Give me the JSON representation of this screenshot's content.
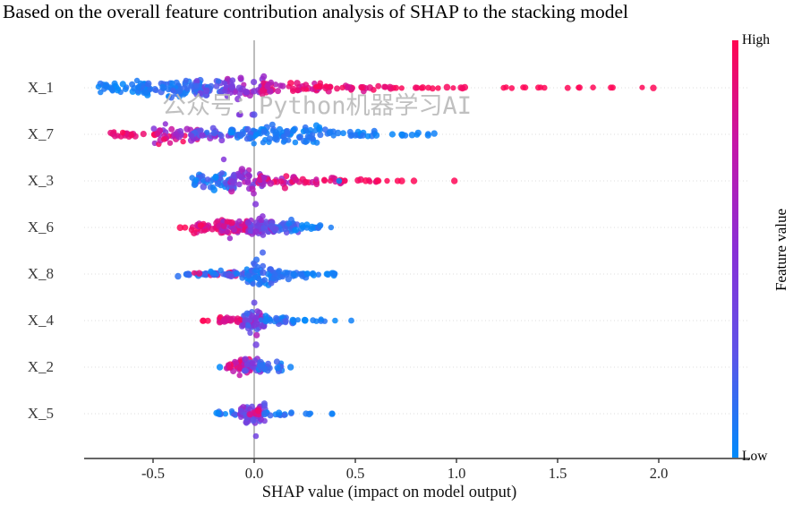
{
  "title": "Based on the overall feature contribution analysis of SHAP to the stacking model",
  "watermark": "公众号：Python机器学习AI",
  "chart_data": {
    "type": "beeswarm",
    "title": "Based on the overall feature contribution analysis of SHAP to the stacking model",
    "xlabel": "SHAP value (impact on model output)",
    "ylabel": "",
    "x_ticks": [
      {
        "value": -0.5,
        "label": "-0.5"
      },
      {
        "value": 0.0,
        "label": "0.0"
      },
      {
        "value": 0.5,
        "label": "0.5"
      },
      {
        "value": 1.0,
        "label": "1.0"
      },
      {
        "value": 1.5,
        "label": "1.5"
      },
      {
        "value": 2.0,
        "label": "2.0"
      }
    ],
    "x_range": [
      -0.84,
      2.45
    ],
    "grid": "dotted horizontal line per feature row",
    "zero_reference_line": 0.0,
    "colorbar": {
      "high_label": "High",
      "low_label": "Low",
      "axis_label": "Feature value",
      "high_color": "#ff0751",
      "low_color": "#008bfb",
      "gradient_stops_top_to_bottom": [
        "#ff0751",
        "#c516a8",
        "#8a2fd6",
        "#5e53e8",
        "#008bfb"
      ]
    },
    "colormap_stops": [
      {
        "t": 0.0,
        "rgb": [
          0,
          139,
          251
        ]
      },
      {
        "t": 0.35,
        "rgb": [
          94,
          83,
          232
        ]
      },
      {
        "t": 0.6,
        "rgb": [
          138,
          47,
          214
        ]
      },
      {
        "t": 0.8,
        "rgb": [
          197,
          22,
          168
        ]
      },
      {
        "t": 1.0,
        "rgb": [
          255,
          7,
          87
        ]
      }
    ],
    "features": [
      {
        "name": "X_1",
        "shap_range": [
          -0.78,
          2.03
        ],
        "summary": "low values (blue) push negative to -0.78; high values (pink/red) push positive with sparse red outliers from 1.2 to 2.0",
        "clusters": [
          {
            "from": -0.78,
            "to": -0.52,
            "n": 40,
            "spread": 9,
            "t": [
              0.0,
              0.15
            ]
          },
          {
            "from": -0.58,
            "to": -0.25,
            "n": 75,
            "spread": 13,
            "t": [
              0.0,
              0.25
            ]
          },
          {
            "from": -0.3,
            "to": -0.12,
            "n": 35,
            "spread": 12,
            "t": [
              0.1,
              0.5
            ]
          },
          {
            "from": -0.14,
            "to": 0.07,
            "n": 48,
            "spread": 19,
            "t": [
              0.45,
              0.8
            ]
          },
          {
            "from": 0.04,
            "to": 0.34,
            "n": 45,
            "spread": 9,
            "t": [
              0.72,
              1.0
            ]
          },
          {
            "from": 0.3,
            "to": 0.7,
            "n": 32,
            "spread": 5,
            "t": [
              0.85,
              1.0
            ]
          },
          {
            "from": 0.7,
            "to": 1.05,
            "n": 14,
            "spread": 1.5,
            "t": [
              0.95,
              1.0
            ]
          },
          {
            "from": 1.22,
            "to": 2.03,
            "n": 16,
            "spread": 1,
            "t": [
              1.0,
              1.0
            ]
          },
          {
            "from": -0.25,
            "to": 0.1,
            "n": 4,
            "spread": 0,
            "dy": 30,
            "t": [
              0.3,
              0.7
            ]
          }
        ]
      },
      {
        "name": "X_7",
        "shap_range": [
          -0.71,
          0.9
        ],
        "summary": "high values (red) push negative; low values (blue) cluster at 0 to +0.4 with tail to +0.9",
        "clusters": [
          {
            "from": -0.71,
            "to": -0.46,
            "n": 22,
            "spread": 4,
            "t": [
              0.88,
              1.0
            ]
          },
          {
            "from": -0.5,
            "to": -0.28,
            "n": 40,
            "spread": 13,
            "t": [
              0.55,
              1.0
            ]
          },
          {
            "from": -0.32,
            "to": -0.1,
            "n": 30,
            "spread": 8,
            "t": [
              0.15,
              0.65
            ]
          },
          {
            "from": -0.12,
            "to": 0.06,
            "n": 35,
            "spread": 12,
            "t": [
              0.0,
              0.3
            ]
          },
          {
            "from": 0.04,
            "to": 0.36,
            "n": 65,
            "spread": 17,
            "t": [
              0.0,
              0.2
            ]
          },
          {
            "from": 0.34,
            "to": 0.6,
            "n": 22,
            "spread": 6,
            "t": [
              0.0,
              0.15
            ]
          },
          {
            "from": 0.58,
            "to": 0.9,
            "n": 12,
            "spread": 2.5,
            "t": [
              0.0,
              0.1
            ]
          },
          {
            "from": -0.18,
            "to": -0.15,
            "n": 1,
            "spread": 0,
            "dy": 28,
            "t": [
              0.5,
              0.6
            ]
          }
        ]
      },
      {
        "name": "X_3",
        "shap_range": [
          -0.31,
          0.99
        ],
        "summary": "low values (blue) slightly negative; high values (red) positive with isolated red outlier near 1.0",
        "clusters": [
          {
            "from": -0.31,
            "to": -0.1,
            "n": 45,
            "spread": 14,
            "t": [
              0.0,
              0.35
            ]
          },
          {
            "from": -0.12,
            "to": 0.04,
            "n": 40,
            "spread": 16,
            "t": [
              0.4,
              0.8
            ]
          },
          {
            "from": 0.02,
            "to": 0.2,
            "n": 30,
            "spread": 9,
            "t": [
              0.6,
              1.0
            ]
          },
          {
            "from": 0.18,
            "to": 0.44,
            "n": 24,
            "spread": 6,
            "t": [
              0.8,
              1.0
            ]
          },
          {
            "from": 0.42,
            "to": 0.62,
            "n": 12,
            "spread": 2,
            "t": [
              0.9,
              1.0
            ]
          },
          {
            "from": 0.42,
            "to": 0.42,
            "n": 1,
            "spread": 0,
            "t": [
              0.0,
              0.0
            ]
          },
          {
            "from": 0.6,
            "to": 0.73,
            "n": 4,
            "spread": 1,
            "t": [
              1.0,
              1.0
            ]
          },
          {
            "from": 0.79,
            "to": 0.79,
            "n": 1,
            "spread": 0,
            "t": [
              1.0,
              1.0
            ]
          },
          {
            "from": 0.99,
            "to": 0.99,
            "n": 1,
            "spread": 0,
            "t": [
              1.0,
              1.0
            ]
          },
          {
            "from": 0.0,
            "to": 0.02,
            "n": 1,
            "spread": 0,
            "dy": 26,
            "t": [
              0.5,
              0.7
            ]
          }
        ]
      },
      {
        "name": "X_6",
        "shap_range": [
          -0.39,
          0.38
        ],
        "summary": "high values (red) negative down to -0.39; low values (blue) positive up to +0.38",
        "clusters": [
          {
            "from": -0.39,
            "to": -0.33,
            "n": 2,
            "spread": 0.5,
            "t": [
              1.0,
              1.0
            ]
          },
          {
            "from": -0.31,
            "to": -0.14,
            "n": 40,
            "spread": 10,
            "t": [
              0.82,
              1.0
            ]
          },
          {
            "from": -0.17,
            "to": -0.01,
            "n": 50,
            "spread": 14,
            "t": [
              0.6,
              0.95
            ]
          },
          {
            "from": -0.03,
            "to": 0.1,
            "n": 48,
            "spread": 16,
            "t": [
              0.3,
              0.7
            ]
          },
          {
            "from": 0.08,
            "to": 0.22,
            "n": 35,
            "spread": 11,
            "t": [
              0.05,
              0.45
            ]
          },
          {
            "from": 0.2,
            "to": 0.33,
            "n": 14,
            "spread": 4,
            "t": [
              0.0,
              0.2
            ]
          },
          {
            "from": 0.38,
            "to": 0.38,
            "n": 1,
            "spread": 0,
            "t": [
              0.0,
              0.1
            ]
          },
          {
            "from": 0.04,
            "to": 0.06,
            "n": 1,
            "spread": 0,
            "dy": 28,
            "t": [
              0.1,
              0.3
            ]
          }
        ]
      },
      {
        "name": "X_8",
        "shap_range": [
          -0.38,
          0.4
        ],
        "summary": "mostly blue thin band -0.38 to +0.40 with red specks on negative side and tall blue blob at 0",
        "clusters": [
          {
            "from": -0.38,
            "to": -0.2,
            "n": 14,
            "spread": 3,
            "t": [
              0.0,
              0.3
            ]
          },
          {
            "from": -0.33,
            "to": -0.04,
            "n": 14,
            "spread": 3,
            "t": [
              0.85,
              1.0
            ]
          },
          {
            "from": -0.22,
            "to": -0.02,
            "n": 30,
            "spread": 6,
            "t": [
              0.0,
              0.45
            ]
          },
          {
            "from": -0.04,
            "to": 0.11,
            "n": 55,
            "spread": 19,
            "t": [
              0.0,
              0.3
            ]
          },
          {
            "from": 0.09,
            "to": 0.26,
            "n": 28,
            "spread": 6,
            "t": [
              0.0,
              0.2
            ]
          },
          {
            "from": 0.24,
            "to": 0.4,
            "n": 12,
            "spread": 2.5,
            "t": [
              0.0,
              0.12
            ]
          },
          {
            "from": 0.0,
            "to": 0.01,
            "n": 1,
            "spread": 0,
            "dy": 32,
            "t": [
              0.35,
              0.5
            ]
          }
        ]
      },
      {
        "name": "X_4",
        "shap_range": [
          -0.27,
          0.48
        ],
        "summary": "red dots negative to -0.27; tall purple/blue blob at 0; blue tail to +0.35 with isolated blue dots at 0.40 and 0.48",
        "clusters": [
          {
            "from": -0.27,
            "to": -0.19,
            "n": 3,
            "spread": 0.8,
            "t": [
              1.0,
              1.0
            ]
          },
          {
            "from": -0.18,
            "to": -0.04,
            "n": 28,
            "spread": 5,
            "t": [
              0.8,
              1.0
            ]
          },
          {
            "from": -0.06,
            "to": 0.05,
            "n": 50,
            "spread": 20,
            "t": [
              0.2,
              0.75
            ]
          },
          {
            "from": 0.03,
            "to": 0.2,
            "n": 28,
            "spread": 6,
            "t": [
              0.0,
              0.3
            ]
          },
          {
            "from": 0.18,
            "to": 0.35,
            "n": 10,
            "spread": 2.5,
            "t": [
              0.0,
              0.15
            ]
          },
          {
            "from": 0.4,
            "to": 0.4,
            "n": 1,
            "spread": 0,
            "t": [
              0.0,
              0.1
            ]
          },
          {
            "from": 0.48,
            "to": 0.48,
            "n": 1,
            "spread": 0,
            "t": [
              0.0,
              0.1
            ]
          },
          {
            "from": -0.01,
            "to": 0.01,
            "n": 1,
            "spread": 0,
            "dy": 27,
            "t": [
              0.45,
              0.6
            ]
          }
        ]
      },
      {
        "name": "X_2",
        "shap_range": [
          -0.17,
          0.18
        ],
        "summary": "compact cluster: red slightly negative, blue slightly positive, isolated blue dots at -0.17 and +0.18",
        "clusters": [
          {
            "from": -0.17,
            "to": -0.17,
            "n": 1,
            "spread": 0,
            "t": [
              0.0,
              0.1
            ]
          },
          {
            "from": -0.14,
            "to": -0.01,
            "n": 35,
            "spread": 11,
            "t": [
              0.75,
              1.0
            ]
          },
          {
            "from": -0.05,
            "to": 0.05,
            "n": 30,
            "spread": 13,
            "t": [
              0.3,
              0.8
            ]
          },
          {
            "from": 0.02,
            "to": 0.14,
            "n": 24,
            "spread": 8,
            "t": [
              0.0,
              0.3
            ]
          },
          {
            "from": 0.18,
            "to": 0.18,
            "n": 1,
            "spread": 0,
            "t": [
              0.0,
              0.1
            ]
          }
        ]
      },
      {
        "name": "X_5",
        "shap_range": [
          -0.19,
          0.39
        ],
        "summary": "small purple/blue blob at 0 with pink specks; blue dots trailing right to +0.39",
        "clusters": [
          {
            "from": -0.19,
            "to": -0.05,
            "n": 16,
            "spread": 4,
            "t": [
              0.0,
              0.35
            ]
          },
          {
            "from": -0.07,
            "to": 0.06,
            "n": 45,
            "spread": 16,
            "t": [
              0.25,
              0.65
            ]
          },
          {
            "from": -0.03,
            "to": 0.04,
            "n": 10,
            "spread": 9,
            "t": [
              0.8,
              1.0
            ]
          },
          {
            "from": 0.04,
            "to": 0.19,
            "n": 14,
            "spread": 4,
            "t": [
              0.0,
              0.25
            ]
          },
          {
            "from": 0.23,
            "to": 0.28,
            "n": 3,
            "spread": 1,
            "t": [
              0.0,
              0.15
            ]
          },
          {
            "from": 0.37,
            "to": 0.39,
            "n": 2,
            "spread": 0.5,
            "t": [
              0.0,
              0.1
            ]
          },
          {
            "from": 0.0,
            "to": 0.01,
            "n": 1,
            "spread": 0,
            "dy": 25,
            "t": [
              0.3,
              0.5
            ]
          }
        ]
      }
    ]
  }
}
